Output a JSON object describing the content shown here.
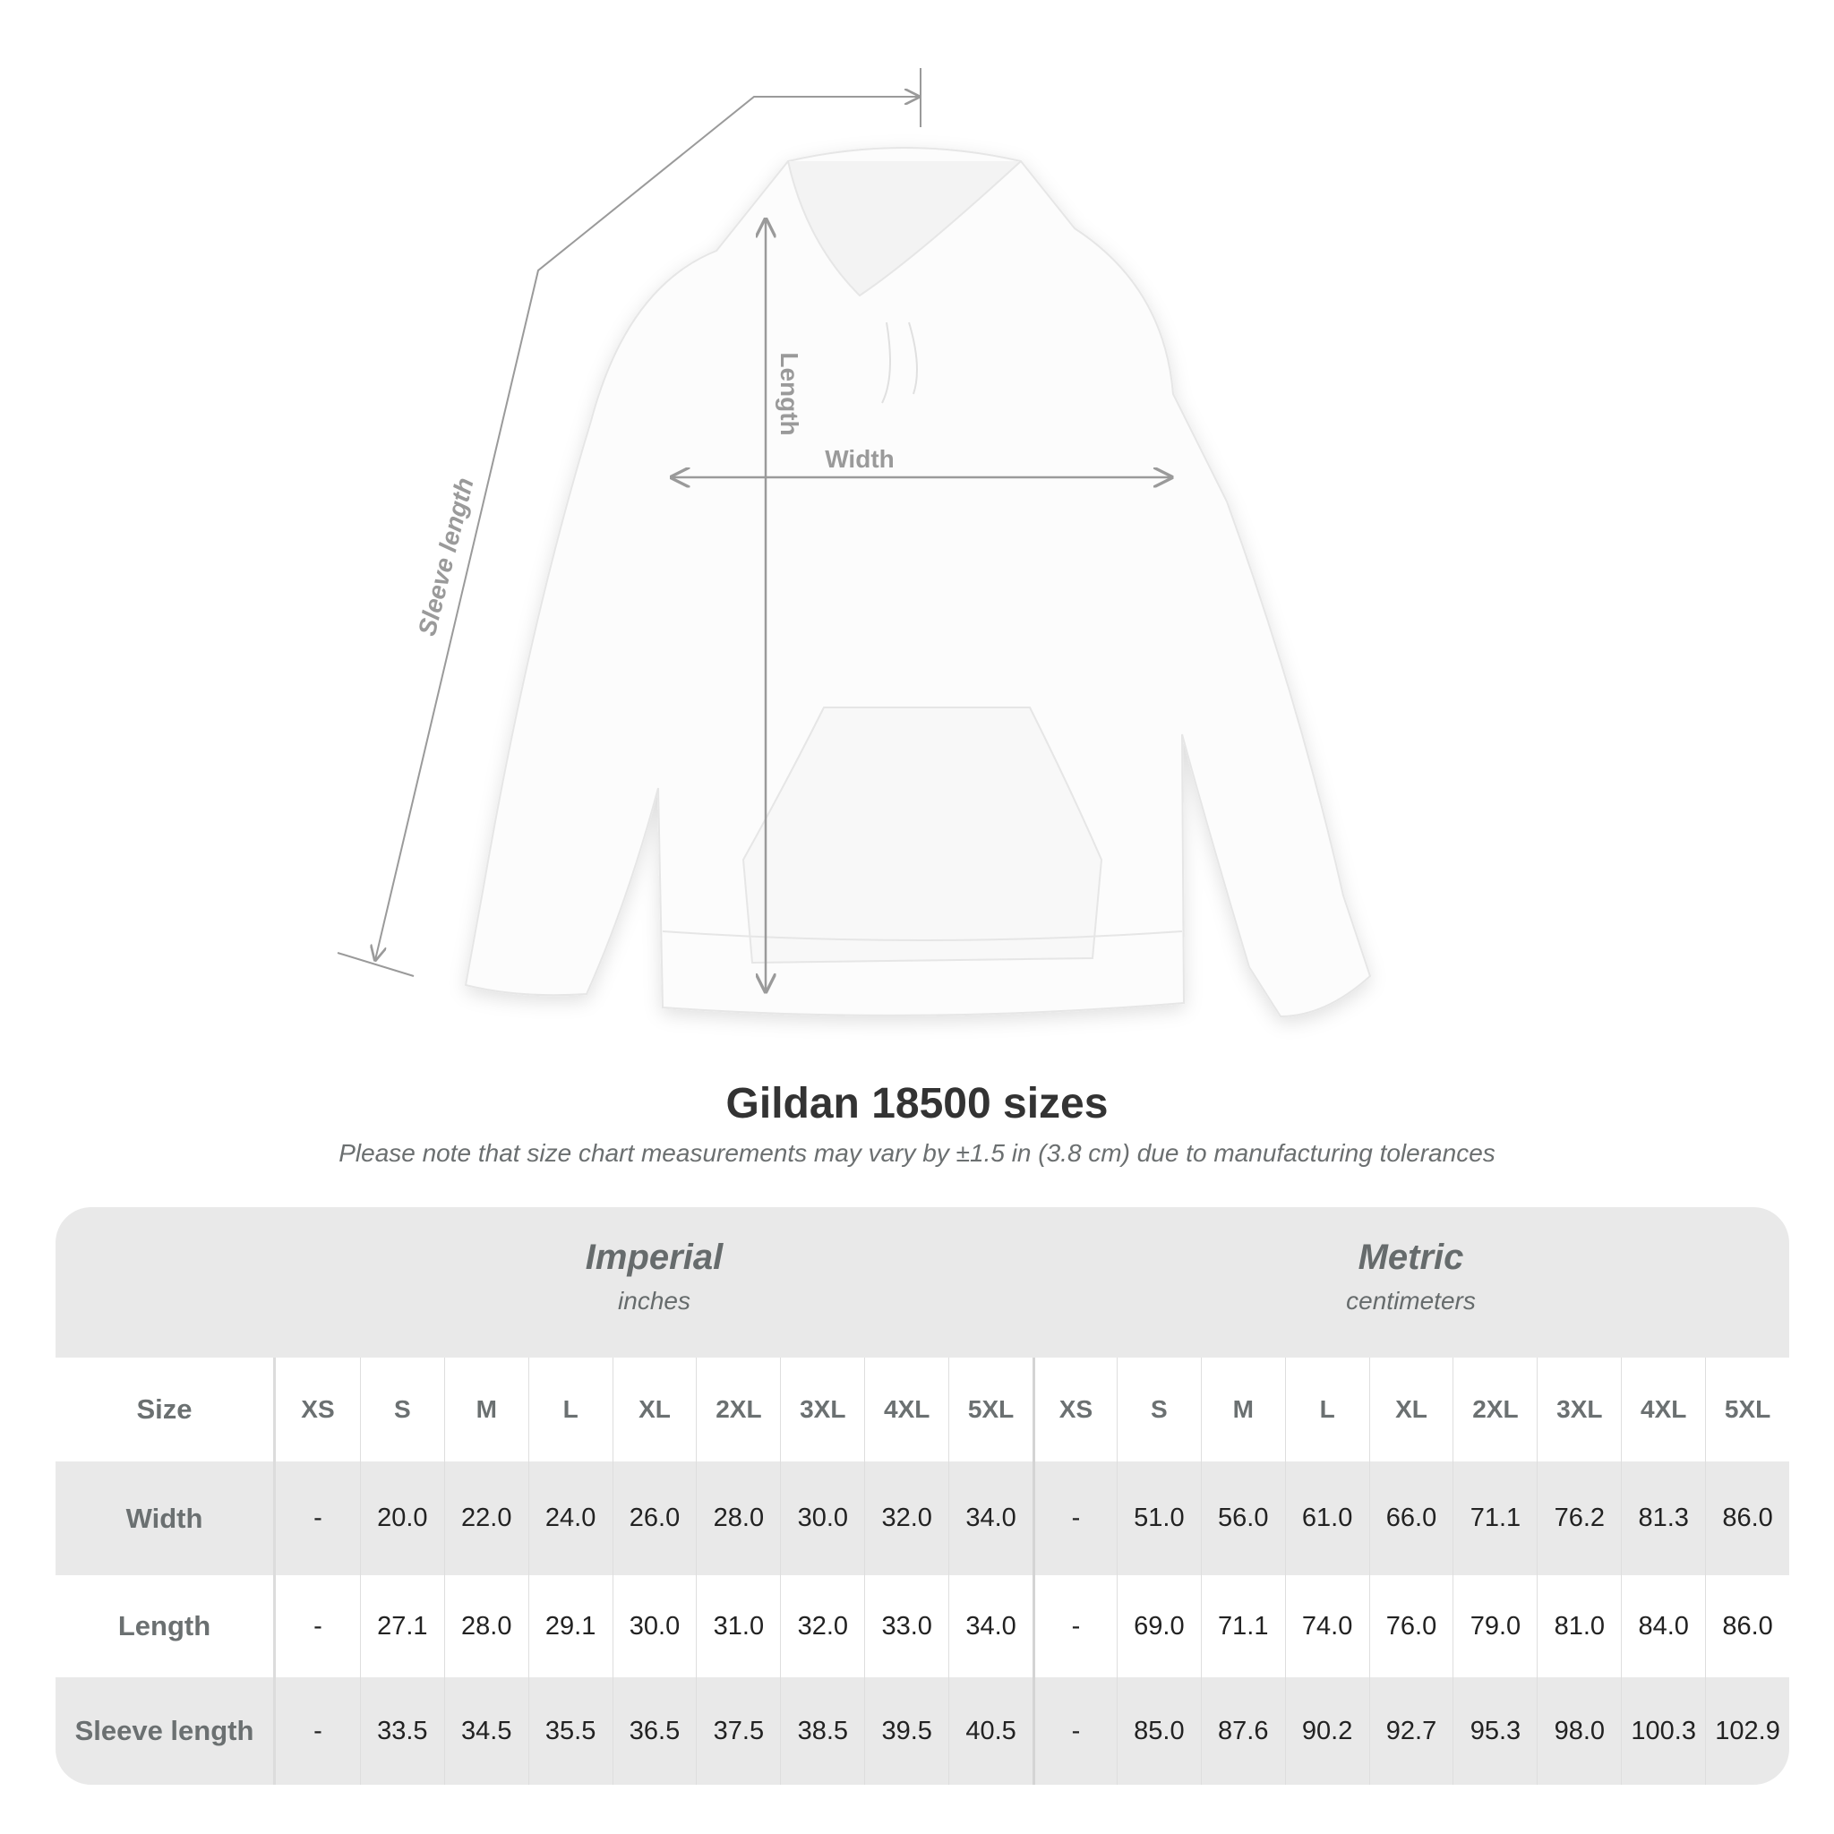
{
  "diagram": {
    "labels": {
      "sleeve": "Sleeve length",
      "length": "Length",
      "width": "Width"
    },
    "line_color": "#9a9a9a"
  },
  "title": "Gildan 18500 sizes",
  "note": "Please note that size chart measurements may vary by ±1.5 in (3.8 cm) due to manufacturing tolerances",
  "table": {
    "imperial": {
      "title": "Imperial",
      "unit": "inches"
    },
    "metric": {
      "title": "Metric",
      "unit": "centimeters"
    },
    "size_label": "Size",
    "sizes": [
      "XS",
      "S",
      "M",
      "L",
      "XL",
      "2XL",
      "3XL",
      "4XL",
      "5XL"
    ],
    "rows": [
      {
        "label": "Width",
        "imperial": [
          "-",
          "20.0",
          "22.0",
          "24.0",
          "26.0",
          "28.0",
          "30.0",
          "32.0",
          "34.0"
        ],
        "metric": [
          "-",
          "51.0",
          "56.0",
          "61.0",
          "66.0",
          "71.1",
          "76.2",
          "81.3",
          "86.0"
        ]
      },
      {
        "label": "Length",
        "imperial": [
          "-",
          "27.1",
          "28.0",
          "29.1",
          "30.0",
          "31.0",
          "32.0",
          "33.0",
          "34.0"
        ],
        "metric": [
          "-",
          "69.0",
          "71.1",
          "74.0",
          "76.0",
          "79.0",
          "81.0",
          "84.0",
          "86.0"
        ]
      },
      {
        "label": "Sleeve length",
        "imperial": [
          "-",
          "33.5",
          "34.5",
          "35.5",
          "36.5",
          "37.5",
          "38.5",
          "39.5",
          "40.5"
        ],
        "metric": [
          "-",
          "85.0",
          "87.6",
          "90.2",
          "92.7",
          "95.3",
          "98.0",
          "100.3",
          "102.9"
        ]
      }
    ],
    "colors": {
      "band": "#e9e9e9",
      "header_text": "#6b7071"
    }
  }
}
